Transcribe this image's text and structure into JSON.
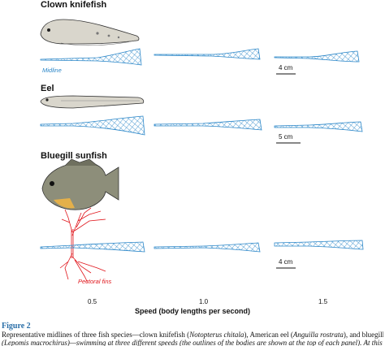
{
  "species": [
    "Clown knifefish",
    "Eel",
    "Bluegill sunfish"
  ],
  "labels": {
    "midline": "Midline",
    "pectoral_fins": "Pectoral fins"
  },
  "scale_bars": [
    "4 cm",
    "5 cm",
    "4 cm"
  ],
  "speeds": [
    "0.5",
    "1.0",
    "1.5"
  ],
  "axis_label": "Speed (body lengths per second)",
  "figure_label": "Figure 2",
  "caption": {
    "line1_a": "Representative midlines of three fish species—clown knifefish (",
    "line1_b": "Notopterus chitala",
    "line1_c": "), American eel (",
    "line1_d": "Anguilla rostrata",
    "line1_e": "), and bluegill sunfish",
    "line2": "(Lepomis macrochirus)—swimming at three different speeds (the outlines of the bodies are shown at the top of each panel). At this"
  },
  "colors": {
    "midline": "#2a86c8",
    "fin": "#e0161c",
    "figure_label": "#2a6fa8"
  }
}
